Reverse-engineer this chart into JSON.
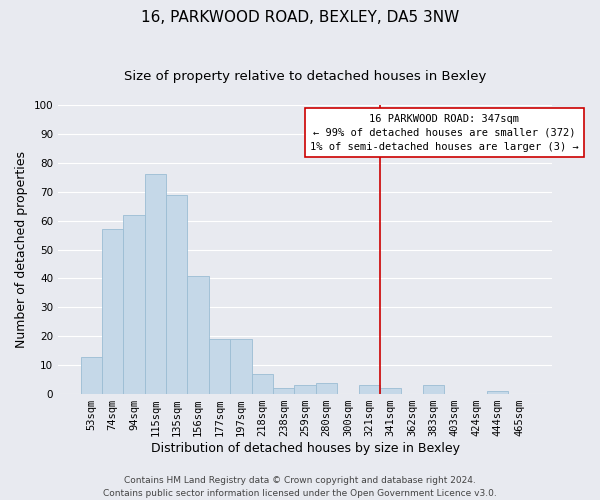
{
  "title": "16, PARKWOOD ROAD, BEXLEY, DA5 3NW",
  "subtitle": "Size of property relative to detached houses in Bexley",
  "xlabel": "Distribution of detached houses by size in Bexley",
  "ylabel": "Number of detached properties",
  "bar_labels": [
    "53sqm",
    "74sqm",
    "94sqm",
    "115sqm",
    "135sqm",
    "156sqm",
    "177sqm",
    "197sqm",
    "218sqm",
    "238sqm",
    "259sqm",
    "280sqm",
    "300sqm",
    "321sqm",
    "341sqm",
    "362sqm",
    "383sqm",
    "403sqm",
    "424sqm",
    "444sqm",
    "465sqm"
  ],
  "bar_heights": [
    13,
    57,
    62,
    76,
    69,
    41,
    19,
    19,
    7,
    2,
    3,
    4,
    0,
    3,
    2,
    0,
    3,
    0,
    0,
    1,
    0
  ],
  "bar_color": "#c5d8e8",
  "bar_edge_color": "#9bbdd4",
  "background_color": "#e8eaf0",
  "grid_color": "#ffffff",
  "ylim": [
    0,
    100
  ],
  "yticks": [
    0,
    10,
    20,
    30,
    40,
    50,
    60,
    70,
    80,
    90,
    100
  ],
  "vline_color": "#cc0000",
  "annotation_title": "16 PARKWOOD ROAD: 347sqm",
  "annotation_line1": "← 99% of detached houses are smaller (372)",
  "annotation_line2": "1% of semi-detached houses are larger (3) →",
  "annotation_box_color": "#ffffff",
  "annotation_box_edge": "#cc0000",
  "footer_line1": "Contains HM Land Registry data © Crown copyright and database right 2024.",
  "footer_line2": "Contains public sector information licensed under the Open Government Licence v3.0.",
  "title_fontsize": 11,
  "subtitle_fontsize": 9.5,
  "axis_label_fontsize": 9,
  "tick_fontsize": 7.5,
  "annotation_fontsize": 7.5,
  "footer_fontsize": 6.5
}
